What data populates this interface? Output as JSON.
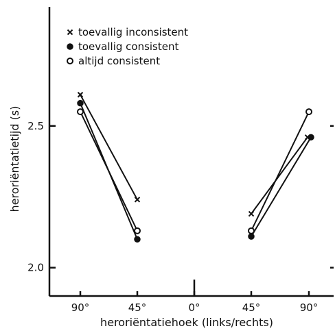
{
  "chart_data": {
    "type": "line",
    "title": "",
    "xlabel": "heroriëntatiehoek (links/rechts)",
    "ylabel": "heroriëntatietijd (s)",
    "x_ticks": [
      "90°",
      "45°",
      "0°",
      "45°",
      "90°"
    ],
    "y_ticks": [
      "2.0",
      "2.5"
    ],
    "ylim": [
      1.9,
      2.92
    ],
    "grid": false,
    "legend_position": "top-left",
    "series": [
      {
        "name": "toevallig inconsistent",
        "marker": "x",
        "segments": [
          {
            "x": [
              "90°",
              "45°"
            ],
            "side": "links",
            "values": [
              2.61,
              2.24
            ]
          },
          {
            "x": [
              "45°",
              "90°"
            ],
            "side": "rechts",
            "values": [
              2.19,
              2.46
            ]
          }
        ]
      },
      {
        "name": "toevallig consistent",
        "marker": "filled-circle",
        "segments": [
          {
            "x": [
              "90°",
              "45°"
            ],
            "side": "links",
            "values": [
              2.58,
              2.1
            ]
          },
          {
            "x": [
              "45°",
              "90°"
            ],
            "side": "rechts",
            "values": [
              2.11,
              2.46
            ]
          }
        ]
      },
      {
        "name": "altijd consistent",
        "marker": "open-circle",
        "segments": [
          {
            "x": [
              "90°",
              "45°"
            ],
            "side": "links",
            "values": [
              2.55,
              2.13
            ]
          },
          {
            "x": [
              "45°",
              "90°"
            ],
            "side": "rechts",
            "values": [
              2.13,
              2.55
            ]
          }
        ]
      }
    ]
  }
}
